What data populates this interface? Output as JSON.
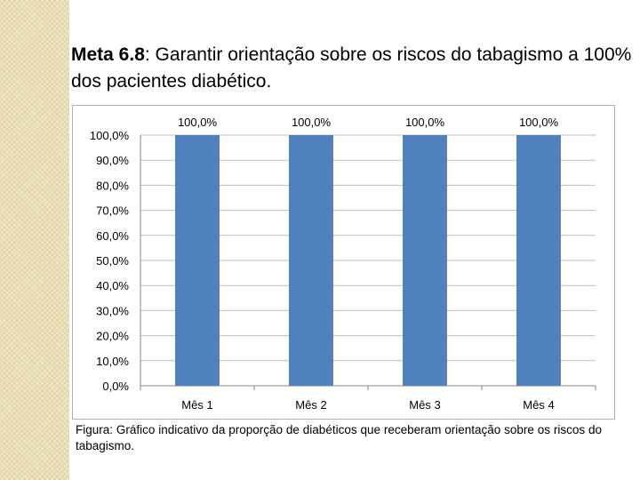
{
  "slide": {
    "title_bold": "Meta 6.8",
    "title_rest": ": Garantir orientação sobre os riscos do tabagismo a 100% dos pacientes diabético.",
    "caption": "Figura: Gráfico indicativo da proporção de diabéticos que receberam orientação sobre os riscos do tabagismo."
  },
  "chart_data": {
    "type": "bar",
    "categories": [
      "Mês 1",
      "Mês 2",
      "Mês 3",
      "Mês 4"
    ],
    "values": [
      100.0,
      100.0,
      100.0,
      100.0
    ],
    "data_labels": [
      "100,0%",
      "100,0%",
      "100,0%",
      "100,0%"
    ],
    "ylim": [
      0,
      100
    ],
    "yticks": [
      0,
      10,
      20,
      30,
      40,
      50,
      60,
      70,
      80,
      90,
      100
    ],
    "ytick_labels": [
      "0,0%",
      "10,0%",
      "20,0%",
      "30,0%",
      "40,0%",
      "50,0%",
      "60,0%",
      "70,0%",
      "80,0%",
      "90,0%",
      "100,0%"
    ],
    "title": "",
    "xlabel": "",
    "ylabel": "",
    "grid": true,
    "legend": "none",
    "colors": {
      "bar": "#4f81bd",
      "grid": "#bfbfbf",
      "axis": "#868686"
    }
  }
}
